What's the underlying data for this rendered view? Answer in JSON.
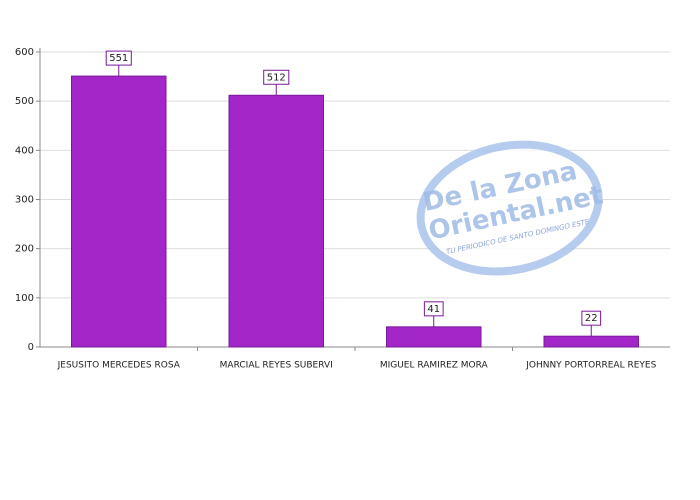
{
  "chart_data": {
    "type": "bar",
    "categories": [
      "JESUSITO MERCEDES ROSA",
      "MARCIAL REYES SUBERVI",
      "MIGUEL RAMIREZ MORA",
      "JOHNNY PORTORREAL REYES"
    ],
    "values": [
      551,
      512,
      41,
      22
    ],
    "color": "#a226c8",
    "ylim": [
      0,
      600
    ],
    "yticks": [
      0,
      100,
      200,
      300,
      400,
      500,
      600
    ],
    "grid": true,
    "watermark": {
      "line1": "De la Zona",
      "line2": "Oriental.net",
      "tagline": "TU PERIODICO DE SANTO DOMINGO ESTE"
    }
  }
}
